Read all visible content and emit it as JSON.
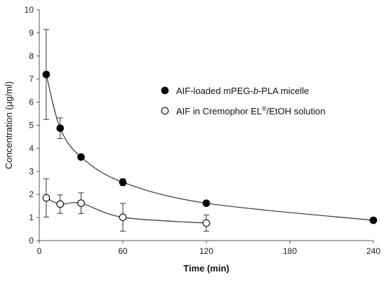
{
  "chart_data": {
    "type": "line",
    "xlabel": "Time (min)",
    "ylabel": "Concentration (µg/ml)",
    "xlim": [
      0,
      240
    ],
    "ylim": [
      0,
      10
    ],
    "xticks": [
      0,
      60,
      120,
      180,
      240
    ],
    "yticks": [
      0,
      1,
      2,
      3,
      4,
      5,
      6,
      7,
      8,
      9,
      10
    ],
    "grid": false,
    "legend_position": "upper-right",
    "series": [
      {
        "name_parts": [
          "AIF-loaded mPEG-",
          "b",
          "-PLA micelle"
        ],
        "marker": "filled-circle",
        "color": "#000000",
        "x": [
          5,
          15,
          30,
          60,
          120,
          240
        ],
        "y": [
          7.2,
          4.87,
          3.62,
          2.53,
          1.62,
          0.88
        ],
        "err": [
          1.95,
          0.45,
          0.08,
          0.15,
          0.06,
          0.03
        ]
      },
      {
        "name_parts": [
          "AIF in Cremophor EL",
          "®",
          "/EtOH solution"
        ],
        "marker": "open-circle",
        "color": "#000000",
        "x": [
          5,
          15,
          30,
          60,
          120
        ],
        "y": [
          1.85,
          1.58,
          1.62,
          1.01,
          0.76
        ],
        "err": [
          0.83,
          0.4,
          0.45,
          0.6,
          0.35
        ]
      }
    ]
  }
}
